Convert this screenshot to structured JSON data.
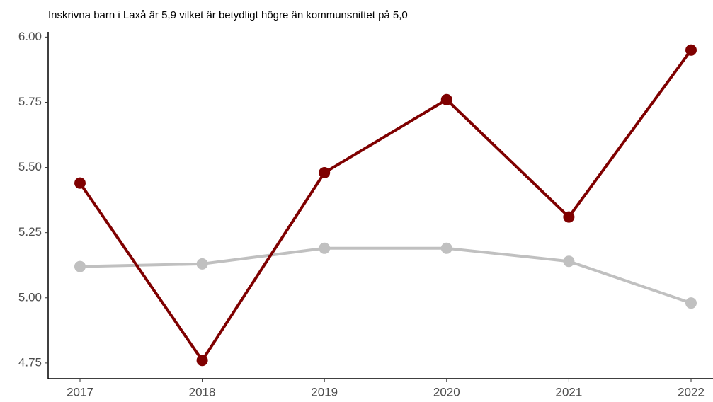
{
  "chart_data": {
    "type": "line",
    "title": "Inskrivna barn i Laxå är 5,9 vilket är betydligt högre än kommunsnittet på 5,0",
    "categories": [
      "2017",
      "2018",
      "2019",
      "2020",
      "2021",
      "2022"
    ],
    "series": [
      {
        "color": "#c0c0c0",
        "values": [
          5.12,
          5.13,
          5.19,
          5.19,
          5.14,
          4.98
        ]
      },
      {
        "color": "#7f0000",
        "values": [
          5.44,
          4.76,
          5.48,
          5.76,
          5.31,
          5.95
        ]
      }
    ],
    "ylim": [
      4.69,
      6.02
    ],
    "yticks": [
      {
        "value": 4.75,
        "label": "4.75"
      },
      {
        "value": 5,
        "label": "5.00"
      },
      {
        "value": 5.25,
        "label": "5.25"
      },
      {
        "value": 5.5,
        "label": "5.50"
      },
      {
        "value": 5.75,
        "label": "5.75"
      },
      {
        "value": 6,
        "label": "6.00"
      }
    ]
  }
}
